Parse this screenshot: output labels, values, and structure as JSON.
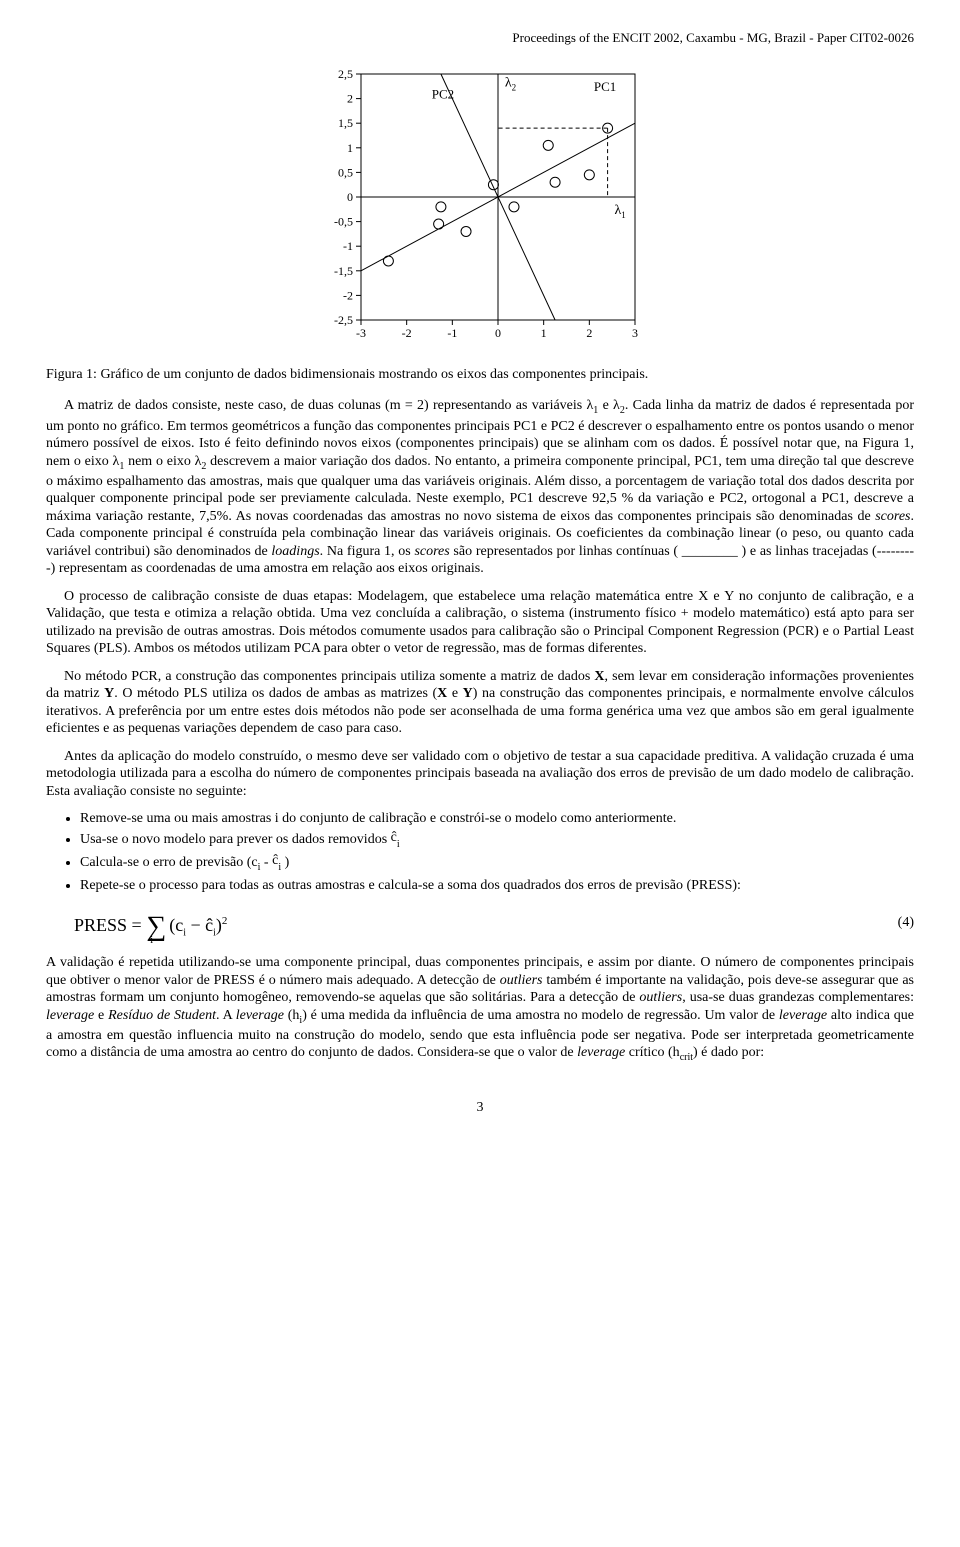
{
  "header": "Proceedings of the ENCIT 2002, Caxambu - MG, Brazil - Paper CIT02-0026",
  "figure": {
    "type": "scatter",
    "xlim": [
      -3,
      3
    ],
    "ylim": [
      -2.5,
      2.5
    ],
    "xtick_labels": [
      "-3",
      "-2",
      "-1",
      "0",
      "1",
      "2",
      "3"
    ],
    "ytick_labels": [
      "-2,5",
      "-2",
      "-1,5",
      "-1",
      "-0,5",
      "0",
      "0,5",
      "1",
      "1,5",
      "2",
      "2,5"
    ],
    "ytick_values": [
      -2.5,
      -2,
      -1.5,
      -1,
      -0.5,
      0,
      0.5,
      1,
      1.5,
      2,
      2.5
    ],
    "points": [
      {
        "x": -2.4,
        "y": -1.3
      },
      {
        "x": -1.3,
        "y": -0.55
      },
      {
        "x": -1.25,
        "y": -0.2
      },
      {
        "x": -0.7,
        "y": -0.7
      },
      {
        "x": -0.1,
        "y": 0.25
      },
      {
        "x": 0.35,
        "y": -0.2
      },
      {
        "x": 1.1,
        "y": 1.05
      },
      {
        "x": 1.25,
        "y": 0.3
      },
      {
        "x": 2.0,
        "y": 0.45
      },
      {
        "x": 2.4,
        "y": 1.4
      }
    ],
    "labels": {
      "pc1": "PC1",
      "pc2": "PC2",
      "l1": "λ",
      "l1sub": "1",
      "l2": "λ",
      "l2sub": "2"
    },
    "axis_color": "#000000",
    "border_color": "#000000",
    "grid_color": "#000000",
    "marker": "circle-open",
    "marker_size": 5,
    "line_width": 1
  },
  "caption": "Figura 1: Gráfico de um conjunto de dados bidimensionais mostrando os eixos das componentes principais.",
  "p1a": "A matriz de dados consiste, neste caso, de duas colunas (m = 2) representando as variáveis λ",
  "p1_sub1": "1",
  "p1b": " e λ",
  "p1_sub2": "2",
  "p1c": ". Cada linha da matriz de dados é representada por um ponto no gráfico. Em termos geométricos a função das componentes principais PC1 e PC2 é descrever o espalhamento entre os pontos usando o menor número possível de eixos. Isto é feito definindo novos eixos (componentes principais) que se alinham com os dados. É possível notar que, na Figura 1, nem o eixo λ",
  "p1_sub3": "1",
  "p1d": " nem o eixo λ",
  "p1_sub4": "2",
  "p1e": " descrevem a maior variação dos dados. No entanto, a primeira componente principal, PC1, tem uma direção tal que descreve o máximo espalhamento das amostras, mais que qualquer uma das variáveis originais. Além disso, a porcentagem de variação total dos dados descrita por qualquer componente principal pode ser previamente calculada. Neste exemplo, PC1 descreve 92,5 % da variação e PC2, ortogonal a PC1, descreve a máxima variação restante, 7,5%. As novas coordenadas das amostras no novo sistema de eixos das componentes principais são denominadas de ",
  "p1_scores": "scores",
  "p1f": ". Cada componente principal é construída pela combinação linear das variáveis originais. Os coeficientes da combinação linear (o peso, ou quanto cada variável contribui) são denominados de ",
  "p1_loadings": "loadings",
  "p1g": ". Na figura 1, os ",
  "p1_scores2": "scores",
  "p1h": " são representados por linhas contínuas ( ________ ) e as linhas tracejadas (---------) representam as coordenadas de uma amostra em relação aos eixos originais.",
  "p2": "O processo de calibração consiste de duas etapas: Modelagem, que estabelece uma relação matemática entre X e Y no conjunto de calibração, e a Validação, que testa e otimiza a relação obtida. Uma vez concluída a calibração, o sistema (instrumento físico + modelo matemático) está apto para ser utilizado na previsão de outras amostras. Dois métodos comumente usados para calibração são o Principal Component Regression (PCR) e o Partial Least Squares (PLS). Ambos os métodos utilizam PCA para obter o vetor de regressão, mas de formas diferentes.",
  "p3a": "No método PCR, a construção das componentes principais utiliza somente a matriz de dados ",
  "p3_X": "X",
  "p3b": ", sem levar em consideração informações provenientes da matriz ",
  "p3_Y": "Y",
  "p3c": ". O método PLS utiliza os dados de ambas as matrizes (",
  "p3_X2": "X",
  "p3d": " e ",
  "p3_Y2": "Y",
  "p3e": ") na construção das componentes principais, e normalmente envolve cálculos iterativos. A preferência por um entre estes dois métodos não pode ser aconselhada de uma forma genérica uma vez que ambos são em geral igualmente eficientes e as pequenas variações dependem de caso para caso.",
  "p4": "Antes da aplicação do modelo construído, o mesmo deve ser validado com o objetivo de testar a sua capacidade preditiva. A validação cruzada é uma metodologia utilizada para a escolha do número de componentes principais baseada na avaliação dos erros de previsão de um dado modelo de calibração. Esta avaliação consiste no seguinte:",
  "bullets": {
    "b1": "Remove-se uma ou mais amostras i do conjunto de calibração e constrói-se o modelo como anteriormente.",
    "b2a": "Usa-se o novo modelo para prever os dados removidos ",
    "b2_chat": "ĉ",
    "b2_sub": "i",
    "b3a": "Calcula-se o erro de previsão (c",
    "b3_sub1": "i",
    "b3b": " - ",
    "b3_chat": "ĉ",
    "b3_sub2": "i",
    "b3c": " )",
    "b4": "Repete-se o processo para todas as outras amostras e calcula-se a soma dos quadrados dos erros de previsão (PRESS):"
  },
  "eq": {
    "lhs": "PRESS = ",
    "num": "(4)"
  },
  "p5a": "A validação é repetida utilizando-se uma componente principal, duas componentes principais, e assim por diante. O número de componentes principais que obtiver o menor valor de PRESS é o número mais adequado. A detecção de ",
  "p5_out1": "outliers",
  "p5b": " também é importante na validação, pois deve-se assegurar que as amostras formam um conjunto homogêneo, removendo-se aquelas que são solitárias. Para a detecção de ",
  "p5_out2": "outliers",
  "p5c": ", usa-se duas grandezas complementares: ",
  "p5_lev": "leverage",
  "p5d": " e ",
  "p5_res": "Resíduo de Student",
  "p5e": ". A ",
  "p5_lev2": "leverage",
  "p5f": " (h",
  "p5_hisub": "i",
  "p5g": ") é uma medida da influência de uma amostra no modelo de regressão. Um valor de ",
  "p5_lev3": "leverage",
  "p5h": " alto indica que a amostra em questão influencia muito na construção do modelo, sendo que esta influência pode ser negativa. Pode ser interpretada geometricamente como a distância de uma amostra ao centro do conjunto de dados. Considera-se que o valor de ",
  "p5_lev4": "leverage",
  "p5i": " crítico (h",
  "p5_critsub": "crit",
  "p5j": ") é dado por:",
  "pagenum": "3"
}
